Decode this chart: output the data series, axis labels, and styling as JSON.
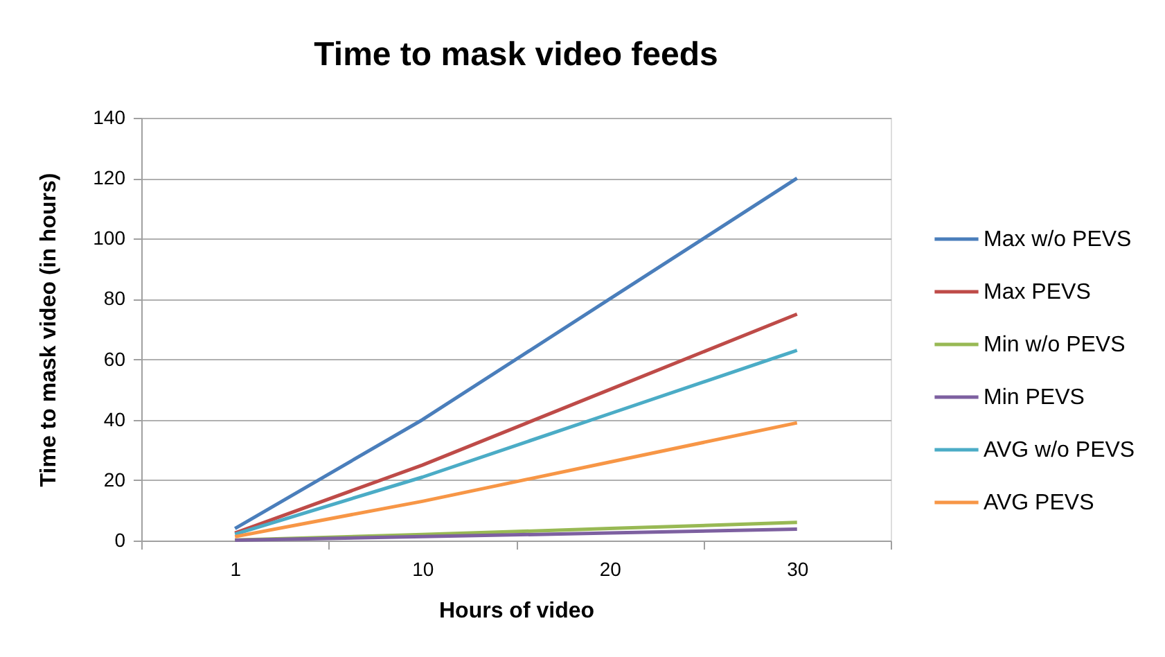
{
  "chart_data": {
    "type": "line",
    "title": "Time to mask video feeds",
    "xlabel": "Hours of video",
    "ylabel": "Time to mask video (in hours)",
    "categories": [
      "1",
      "10",
      "20",
      "30"
    ],
    "ylim": [
      0,
      140
    ],
    "yticks": [
      0,
      20,
      40,
      60,
      80,
      100,
      120,
      140
    ],
    "grid": "y",
    "legend": "right",
    "line_style": "solid",
    "series": [
      {
        "name": "Max w/o PEVS",
        "color": "#4a7ebb",
        "values": [
          4,
          40,
          80,
          120
        ]
      },
      {
        "name": "Max PEVS",
        "color": "#be4b48",
        "values": [
          2.5,
          25,
          50,
          75
        ]
      },
      {
        "name": "Min w/o PEVS",
        "color": "#98b954",
        "values": [
          0.2,
          2,
          4,
          6
        ]
      },
      {
        "name": "Min PEVS",
        "color": "#7d60a0",
        "values": [
          0.1,
          1.3,
          2.5,
          3.8
        ]
      },
      {
        "name": "AVG w/o PEVS",
        "color": "#4bacc6",
        "values": [
          2.1,
          21,
          42,
          63
        ]
      },
      {
        "name": "AVG PEVS",
        "color": "#f79646",
        "values": [
          1.3,
          13,
          26,
          39
        ]
      }
    ]
  }
}
